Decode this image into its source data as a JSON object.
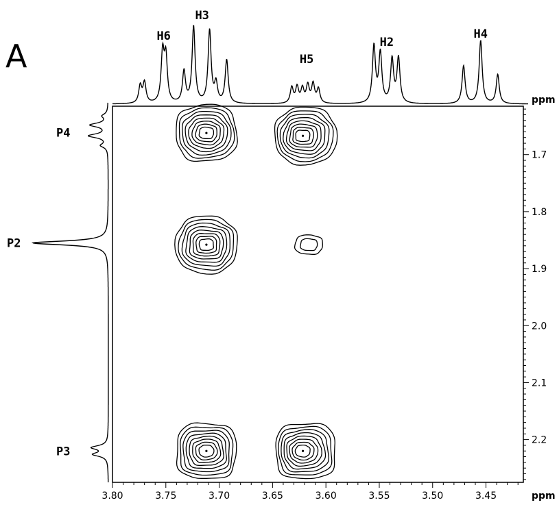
{
  "panel_label": "A",
  "chart_data": {
    "type": "contour",
    "x_axis": {
      "unit": "ppm",
      "range": [
        3.8,
        3.415
      ],
      "reversed": true,
      "ticks": [
        3.8,
        3.75,
        3.7,
        3.65,
        3.6,
        3.55,
        3.5,
        3.45
      ],
      "tick_labels": [
        "3.80",
        "3.75",
        "3.70",
        "3.65",
        "3.60",
        "3.55",
        "3.50",
        "3.45"
      ]
    },
    "y_axis": {
      "unit": "ppm",
      "range": [
        1.615,
        2.275
      ],
      "reversed": true,
      "side": "right",
      "ticks": [
        1.7,
        1.8,
        1.9,
        2.0,
        2.1,
        2.2
      ],
      "tick_labels": [
        "1.7",
        "1.8",
        "1.9",
        "2.0",
        "2.1",
        "2.2"
      ]
    },
    "top_projection": {
      "peaks": [
        {
          "label": "H6",
          "ppm": 3.752
        },
        {
          "label": "H3",
          "ppm": 3.716
        },
        {
          "label": "H5",
          "ppm": 3.618
        },
        {
          "label": "H2",
          "ppm": 3.543
        },
        {
          "label": "H4",
          "ppm": 3.455
        }
      ],
      "lines": [
        {
          "ppm": 3.774,
          "h": 0.22
        },
        {
          "ppm": 3.77,
          "h": 0.26
        },
        {
          "ppm": 3.753,
          "h": 0.62
        },
        {
          "ppm": 3.75,
          "h": 0.56
        },
        {
          "ppm": 3.733,
          "h": 0.4
        },
        {
          "ppm": 3.724,
          "h": 0.97
        },
        {
          "ppm": 3.709,
          "h": 0.92
        },
        {
          "ppm": 3.703,
          "h": 0.24
        },
        {
          "ppm": 3.693,
          "h": 0.55
        },
        {
          "ppm": 3.632,
          "h": 0.2
        },
        {
          "ppm": 3.627,
          "h": 0.2
        },
        {
          "ppm": 3.622,
          "h": 0.18
        },
        {
          "ppm": 3.617,
          "h": 0.22
        },
        {
          "ppm": 3.612,
          "h": 0.24
        },
        {
          "ppm": 3.607,
          "h": 0.18
        },
        {
          "ppm": 3.555,
          "h": 0.72
        },
        {
          "ppm": 3.549,
          "h": 0.63
        },
        {
          "ppm": 3.538,
          "h": 0.55
        },
        {
          "ppm": 3.532,
          "h": 0.57
        },
        {
          "ppm": 3.471,
          "h": 0.48
        },
        {
          "ppm": 3.455,
          "h": 0.8
        },
        {
          "ppm": 3.439,
          "h": 0.37
        }
      ]
    },
    "left_projection": {
      "peaks": [
        {
          "label": "P4",
          "ppm": 1.661
        },
        {
          "label": "P2",
          "ppm": 1.855
        },
        {
          "label": "P3",
          "ppm": 2.22
        }
      ],
      "lines": [
        {
          "ppm": 1.632,
          "h": 0.07
        },
        {
          "ppm": 1.648,
          "h": 0.23
        },
        {
          "ppm": 1.667,
          "h": 0.25
        },
        {
          "ppm": 1.684,
          "h": 0.09
        },
        {
          "ppm": 1.855,
          "h": 1.0
        },
        {
          "ppm": 2.214,
          "h": 0.21
        },
        {
          "ppm": 2.226,
          "h": 0.19
        }
      ]
    },
    "cross_peaks": [
      {
        "x": 3.712,
        "y": 1.662,
        "levels": 8
      },
      {
        "x": 3.619,
        "y": 1.667,
        "levels": 8
      },
      {
        "x": 3.712,
        "y": 1.858,
        "levels": 8
      },
      {
        "x": 3.616,
        "y": 1.858,
        "levels": 2
      },
      {
        "x": 3.712,
        "y": 2.22,
        "levels": 8
      },
      {
        "x": 3.619,
        "y": 2.22,
        "levels": 8
      }
    ]
  }
}
